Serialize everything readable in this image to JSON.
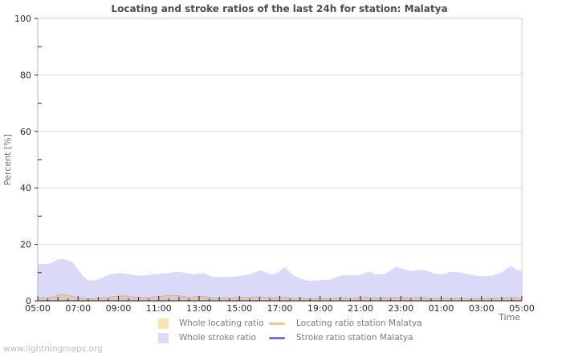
{
  "page": {
    "watermark": "www.lightningmaps.org"
  },
  "colors": {
    "title": "#4d4d4d",
    "tick_label": "#2a2a2a",
    "axis_title": "#707070",
    "legend_text": "#7c7c7c",
    "watermark": "#bdbdc6",
    "grid": "#d8d8d8",
    "border": "#cccccc",
    "axis_left": "#b3b3b3",
    "axis_bottom": "#444444",
    "tick": "#222222",
    "stroke_area_fill": "#dadaf8",
    "locating_area_fill": "#dfc7bd",
    "locating_area_edge": "#cbab9f"
  },
  "chart_data": {
    "type": "area",
    "title": "Locating and stroke ratios of the last 24h for station: Malatya",
    "ylabel": "Percent  [%]",
    "xlabel": "Time",
    "ylim": [
      0,
      100
    ],
    "y_major_ticks": [
      0,
      20,
      40,
      60,
      80,
      100
    ],
    "y_minor_ticks": [
      10,
      30,
      50,
      70,
      90
    ],
    "y_gridlines": [
      20,
      40,
      60,
      80
    ],
    "x_tick_labels": [
      "05:00",
      "07:00",
      "09:00",
      "11:00",
      "13:00",
      "15:00",
      "17:00",
      "19:00",
      "21:00",
      "23:00",
      "01:00",
      "03:00",
      "05:00"
    ],
    "x_label_every_hours": 2,
    "x_minor_tick_every_hours": 0.5,
    "time_span_hours": 24,
    "sample_interval_minutes": 15,
    "grid": "horizontal solid lines at major ticks",
    "legend_position": "bottom-center",
    "series": [
      {
        "name": "Whole locating ratio",
        "type": "area",
        "color": "#fbe3ac",
        "plot_fill": "#dfc7bd",
        "values": [
          1.0,
          1.1,
          1.2,
          1.5,
          2.0,
          2.3,
          2.0,
          1.5,
          1.1,
          0.9,
          0.8,
          0.8,
          0.9,
          1.1,
          1.3,
          1.5,
          1.7,
          1.8,
          1.6,
          1.4,
          1.2,
          1.2,
          1.3,
          1.4,
          1.5,
          1.7,
          1.9,
          2.0,
          1.8,
          1.5,
          1.3,
          1.4,
          1.6,
          1.5,
          1.3,
          1.1,
          1.0,
          1.0,
          1.1,
          1.2,
          1.2,
          1.3,
          1.3,
          1.4,
          1.4,
          1.3,
          1.2,
          1.2,
          1.3,
          1.4,
          1.2,
          1.0,
          0.9,
          0.8,
          0.8,
          0.8,
          0.9,
          0.9,
          1.0,
          1.0,
          1.1,
          1.1,
          1.0,
          1.1,
          1.2,
          1.3,
          1.2,
          1.1,
          1.1,
          1.2,
          1.3,
          1.3,
          1.2,
          1.1,
          1.1,
          1.2,
          1.2,
          1.1,
          1.0,
          1.0,
          0.9,
          1.0,
          1.0,
          1.0,
          1.0,
          0.9,
          0.9,
          0.8,
          0.8,
          0.9,
          0.9,
          1.0,
          1.0,
          1.1,
          1.2,
          1.1,
          1.0
        ]
      },
      {
        "name": "Whole stroke ratio",
        "type": "area",
        "color": "#dcdcf8",
        "plot_fill": "#dadaf8",
        "values": [
          13.0,
          13.1,
          13.0,
          13.6,
          14.7,
          14.8,
          14.4,
          13.6,
          11.0,
          8.8,
          7.3,
          7.2,
          7.6,
          8.4,
          9.2,
          9.6,
          9.8,
          9.7,
          9.4,
          9.1,
          8.9,
          9.0,
          9.2,
          9.4,
          9.6,
          9.7,
          9.8,
          10.1,
          10.3,
          10.0,
          9.6,
          9.3,
          9.7,
          9.9,
          8.9,
          8.5,
          8.4,
          8.4,
          8.5,
          8.6,
          8.8,
          9.0,
          9.3,
          10.0,
          10.7,
          10.4,
          9.3,
          9.5,
          10.5,
          12.0,
          10.0,
          8.8,
          7.9,
          7.4,
          7.1,
          7.2,
          7.3,
          7.4,
          7.6,
          8.2,
          8.9,
          9.0,
          9.0,
          9.1,
          9.1,
          10.0,
          10.3,
          9.3,
          9.4,
          9.7,
          10.8,
          12.0,
          11.5,
          11.0,
          10.5,
          10.7,
          11.0,
          10.8,
          10.1,
          9.6,
          9.3,
          9.8,
          10.3,
          10.2,
          10.0,
          9.6,
          9.2,
          8.9,
          8.7,
          8.8,
          8.9,
          9.4,
          10.0,
          11.5,
          12.3,
          11.0,
          10.5
        ]
      },
      {
        "name": "Locating ratio station Malatya",
        "type": "line",
        "color": "#f2ca85",
        "constant": 0
      },
      {
        "name": "Stroke ratio station Malatya",
        "type": "line",
        "color": "#7373dc",
        "constant": 0
      }
    ]
  }
}
